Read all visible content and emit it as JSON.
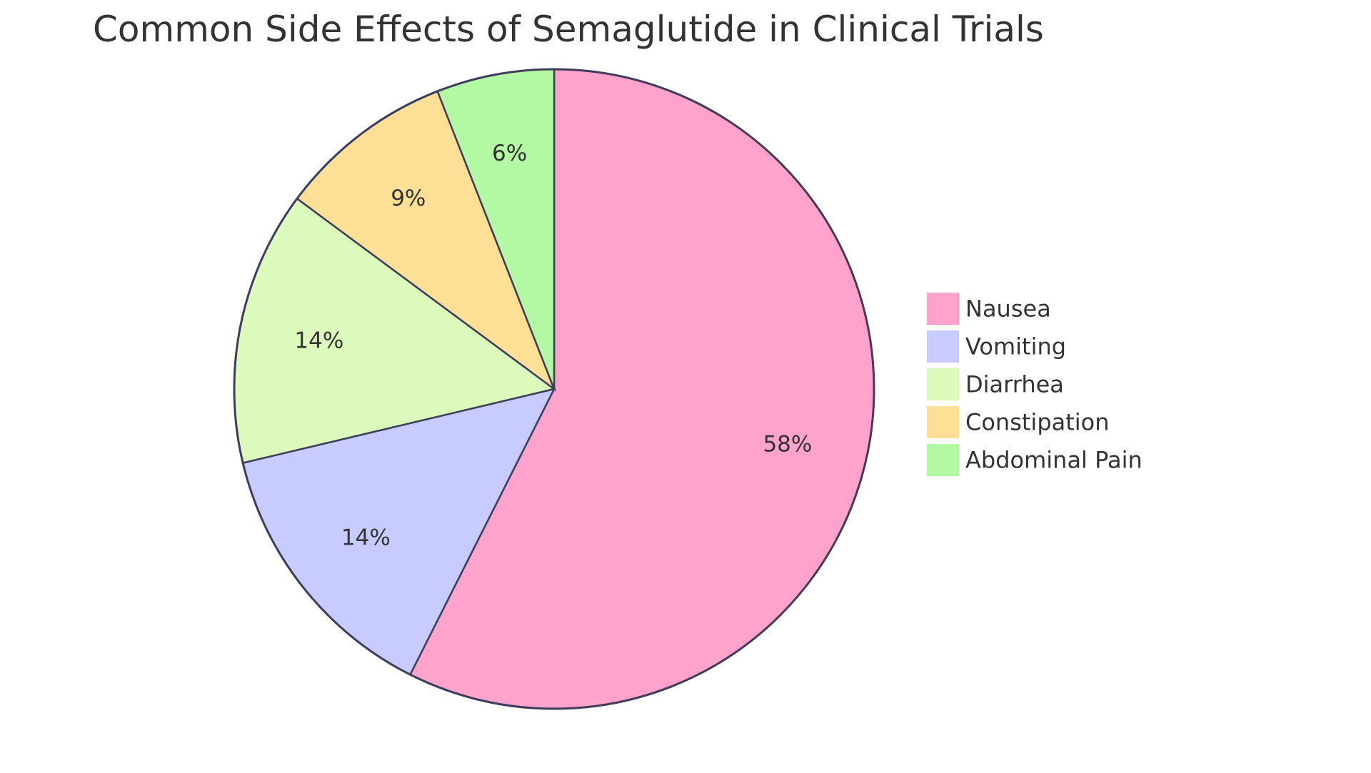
{
  "chart_data": {
    "type": "pie",
    "title": "Common Side Effects of Semaglutide in Clinical Trials",
    "legend_position": "right",
    "slices": [
      {
        "name": "Nausea",
        "value": 58,
        "label": "58%",
        "color": "#ffa3cd"
      },
      {
        "name": "Vomiting",
        "value": 14,
        "label": "14%",
        "color": "#c8cbff"
      },
      {
        "name": "Diarrhea",
        "value": 14,
        "label": "14%",
        "color": "#dcfabb"
      },
      {
        "name": "Constipation",
        "value": 9,
        "label": "9%",
        "color": "#fde096"
      },
      {
        "name": "Abdominal Pain",
        "value": 6,
        "label": "6%",
        "color": "#b3f8a2"
      }
    ]
  }
}
